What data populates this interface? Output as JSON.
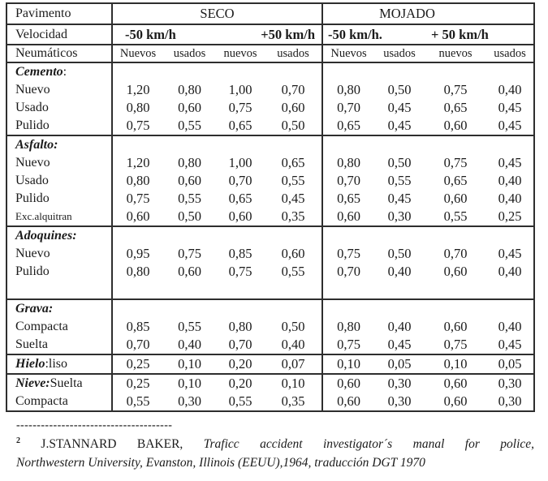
{
  "table": {
    "header": {
      "pavimento": "Pavimento",
      "seco": "SECO",
      "mojado": "MOJADO",
      "velocidad": "Velocidad",
      "seco_speed_low": "-50 km/h",
      "seco_speed_high": "+50 km/h",
      "mojado_speed_low": "-50 km/h.",
      "mojado_speed_high": "+ 50 km/h",
      "neumaticos": "Neumáticos",
      "tires": [
        "Nuevos",
        "usados",
        "nuevos",
        "usados",
        "Nuevos",
        "usados",
        "nuevos",
        "usados"
      ]
    },
    "sections": [
      {
        "bold": "Cemento",
        "rest": ":",
        "rows": [
          {
            "label": "Nuevo",
            "values": [
              "1,20",
              "0,80",
              "1,00",
              "0,70",
              "0,80",
              "0,50",
              "0,75",
              "0,40"
            ]
          },
          {
            "label": "Usado",
            "values": [
              "0,80",
              "0,60",
              "0,75",
              "0,60",
              "0,70",
              "0,45",
              "0,65",
              "0,45"
            ]
          },
          {
            "label": "Pulido",
            "values": [
              "0,75",
              "0,55",
              "0,65",
              "0,50",
              "0,65",
              "0,45",
              "0,60",
              "0,45"
            ]
          }
        ]
      },
      {
        "bold": "Asfalto:",
        "rest": "",
        "rows": [
          {
            "label": "Nuevo",
            "values": [
              "1,20",
              "0,80",
              "1,00",
              "0,65",
              "0,80",
              "0,50",
              "0,75",
              "0,45"
            ]
          },
          {
            "label": "Usado",
            "values": [
              "0,80",
              "0,60",
              "0,70",
              "0,55",
              "0,70",
              "0,55",
              "0,65",
              "0,40"
            ]
          },
          {
            "label": "Pulido",
            "values": [
              "0,75",
              "0,55",
              "0,65",
              "0,45",
              "0,65",
              "0,45",
              "0,60",
              "0,40"
            ]
          },
          {
            "label": "Exc.alquitran",
            "values": [
              "0,60",
              "0,50",
              "0,60",
              "0,35",
              "0,60",
              "0,30",
              "0,55",
              "0,25"
            ]
          }
        ]
      },
      {
        "bold": "Adoquines:",
        "rest": "",
        "rows": [
          {
            "label": "Nuevo",
            "values": [
              "0,95",
              "0,75",
              "0,85",
              "0,60",
              "0,75",
              "0,50",
              "0,70",
              "0,45"
            ]
          },
          {
            "label": "Pulido",
            "values": [
              "0,80",
              "0,60",
              "0,75",
              "0,55",
              "0,70",
              "0,40",
              "0,60",
              "0,40"
            ]
          },
          {
            "label": "",
            "values": [
              "",
              "",
              "",
              "",
              "",
              "",
              "",
              ""
            ]
          }
        ]
      },
      {
        "bold": "Grava:",
        "rest": "",
        "rows": [
          {
            "label": "Compacta",
            "values": [
              "0,85",
              "0,55",
              "0,80",
              "0,50",
              "0,80",
              "0,40",
              "0,60",
              "0,40"
            ]
          },
          {
            "label": "Suelta",
            "values": [
              "0,70",
              "0,40",
              "0,70",
              "0,40",
              "0,75",
              "0,45",
              "0,75",
              "0,45"
            ]
          }
        ]
      },
      {
        "bold": "Hielo",
        "rest": ":liso",
        "title_values": [
          "0,25",
          "0,10",
          "0,20",
          "0,07",
          "0,10",
          "0,05",
          "0,10",
          "0,05"
        ],
        "rows": []
      },
      {
        "bold": "Nieve:",
        "rest": "Suelta",
        "title_values": [
          "0,25",
          "0,10",
          "0,20",
          "0,10",
          "0,60",
          "0,30",
          "0,60",
          "0,30"
        ],
        "rows": [
          {
            "label": "Compacta",
            "values": [
              "0,55",
              "0,30",
              "0,55",
              "0,35",
              "0,60",
              "0,30",
              "0,60",
              "0,30"
            ]
          }
        ]
      }
    ]
  },
  "footnote": {
    "divider": "--------------------------------------",
    "marker": "2",
    "author": "J.STANNARD BAKER,",
    "work_part1": "Traficc accident investigator´s manal for police,",
    "work_part2": "Northwestern University, Evanston, Illinois (EEUU),1964, traducción DGT 1970"
  }
}
